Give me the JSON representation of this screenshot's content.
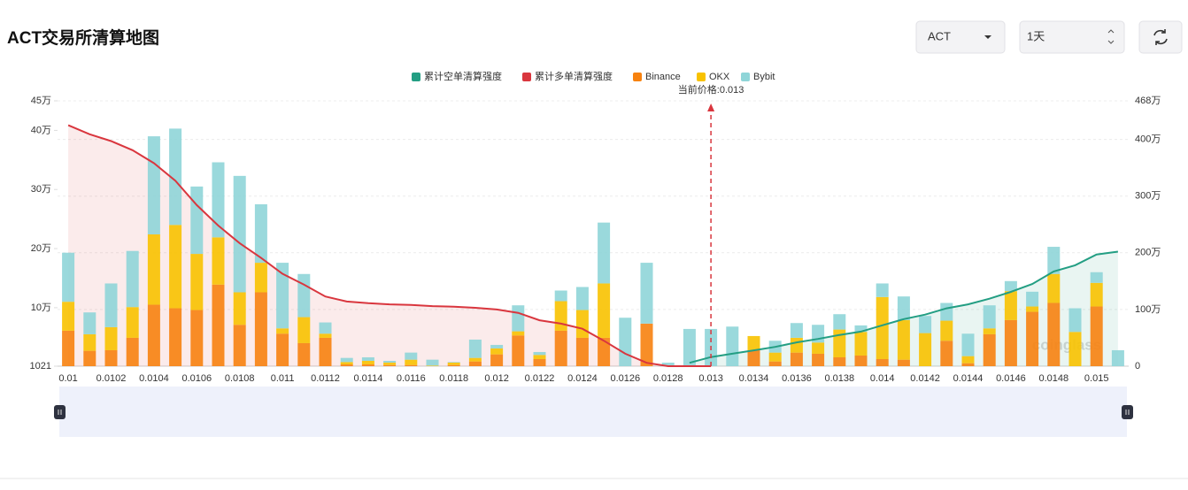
{
  "controls": {
    "symbol": "ACT",
    "interval": "1天"
  },
  "chart_data": {
    "type": "bar",
    "title": "ACT交易所清算地图",
    "annotation": "当前价格:0.013",
    "watermark": "coinglass",
    "categories": [
      "0.01",
      null,
      "0.0102",
      null,
      "0.0104",
      null,
      "0.0106",
      null,
      "0.0108",
      null,
      "0.011",
      null,
      "0.0112",
      null,
      "0.0114",
      null,
      "0.0116",
      null,
      "0.0118",
      null,
      "0.012",
      null,
      "0.0122",
      null,
      "0.0124",
      null,
      "0.0126",
      null,
      "0.0128",
      null,
      "0.013",
      null,
      "0.0134",
      null,
      "0.0136",
      null,
      "0.0138",
      null,
      "0.014",
      null,
      "0.0142",
      null,
      "0.0144",
      null,
      "0.0146",
      null,
      "0.0148",
      null,
      "0.015",
      null
    ],
    "series": [
      {
        "name": "累计空单清算强度",
        "color": "#239e83",
        "type": "line",
        "axis": "y2",
        "values": [
          null,
          null,
          null,
          null,
          null,
          null,
          null,
          null,
          null,
          null,
          null,
          null,
          null,
          null,
          null,
          null,
          null,
          null,
          null,
          null,
          null,
          null,
          null,
          null,
          null,
          null,
          null,
          null,
          null,
          60000,
          160000,
          220000,
          280000,
          340000,
          420000,
          480000,
          550000,
          610000,
          720000,
          830000,
          910000,
          1020000,
          1090000,
          1190000,
          1310000,
          1450000,
          1670000,
          1780000,
          1970000,
          2020000
        ]
      },
      {
        "name": "累计多单清算强度",
        "color": "#d9363e",
        "type": "line",
        "axis": "y2",
        "values": [
          4250000,
          4090000,
          3970000,
          3810000,
          3580000,
          3270000,
          2840000,
          2480000,
          2170000,
          1910000,
          1630000,
          1440000,
          1230000,
          1140000,
          1110000,
          1090000,
          1080000,
          1060000,
          1050000,
          1030000,
          1000000,
          940000,
          810000,
          750000,
          660000,
          450000,
          220000,
          60000,
          0,
          0,
          0,
          null,
          null,
          null,
          null,
          null,
          null,
          null,
          null,
          null,
          null,
          null,
          null,
          null,
          null,
          null,
          null,
          null,
          null,
          null
        ]
      },
      {
        "name": "Binance",
        "color": "#f7820f",
        "type": "bar",
        "values": [
          61000,
          27000,
          28000,
          49000,
          105000,
          99000,
          96000,
          139000,
          71000,
          126000,
          56000,
          40000,
          49000,
          4000,
          4000,
          3000,
          3000,
          1000,
          3000,
          9000,
          21000,
          53000,
          13000,
          61000,
          49000,
          49000,
          0,
          73000,
          0,
          0,
          0,
          0,
          28000,
          9000,
          24000,
          22000,
          16000,
          19000,
          13000,
          12000,
          1000,
          44000,
          6000,
          55000,
          79000,
          93000,
          108000,
          0,
          102000,
          0
        ]
      },
      {
        "name": "OKX",
        "color": "#f8c200",
        "type": "bar",
        "values": [
          49000,
          28000,
          39000,
          52000,
          119000,
          141000,
          95000,
          80000,
          55000,
          50000,
          9000,
          44000,
          7000,
          4000,
          6000,
          4000,
          9000,
          1000,
          4000,
          6000,
          10000,
          7000,
          7000,
          50000,
          47000,
          92000,
          0,
          0,
          0,
          0,
          0,
          0,
          24000,
          15000,
          25000,
          19000,
          47000,
          40000,
          105000,
          67000,
          56000,
          34000,
          12000,
          10000,
          49000,
          9000,
          49000,
          59000,
          40000,
          0
        ]
      },
      {
        "name": "Bybit",
        "color": "#8fd5d8",
        "type": "bar",
        "values": [
          83000,
          37000,
          74000,
          95000,
          166000,
          163000,
          114000,
          127000,
          197000,
          99000,
          111000,
          73000,
          19000,
          7000,
          6000,
          3000,
          12000,
          10000,
          1000,
          31000,
          6000,
          44000,
          5000,
          18000,
          39000,
          103000,
          83000,
          103000,
          7000,
          64000,
          64000,
          68000,
          0,
          20000,
          25000,
          30000,
          26000,
          11000,
          23000,
          40000,
          29000,
          30000,
          38000,
          39000,
          17000,
          25000,
          46000,
          40000,
          18000,
          28000
        ]
      }
    ],
    "ylim": [
      1021,
      450000
    ],
    "yticks": [
      1021,
      {
        "value": 100000,
        "label": "10万"
      },
      {
        "value": 200000,
        "label": "20万"
      },
      {
        "value": 300000,
        "label": "30万"
      },
      {
        "value": 400000,
        "label": "40万"
      },
      {
        "value": 450000,
        "label": "45万"
      }
    ],
    "y2lim": [
      0,
      4680000
    ],
    "y2ticks": [
      0,
      {
        "value": 1000000,
        "label": "100万"
      },
      {
        "value": 2000000,
        "label": "200万"
      },
      {
        "value": 3000000,
        "label": "300万"
      },
      {
        "value": 4000000,
        "label": "400万"
      },
      {
        "value": 4680000,
        "label": "468万"
      }
    ],
    "grid": true
  }
}
